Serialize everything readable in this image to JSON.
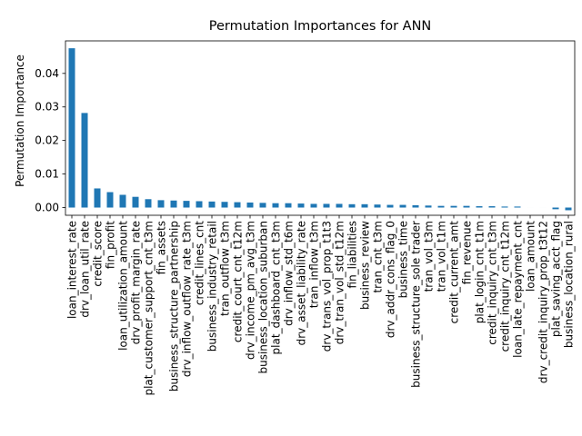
{
  "chart_data": {
    "type": "bar",
    "title": "Permutation Importances for ANN",
    "xlabel": "",
    "ylabel": "Permutation Importance",
    "ylim": [
      -0.0023,
      0.0497
    ],
    "yticks": [
      0.0,
      0.01,
      0.02,
      0.03,
      0.04
    ],
    "ytick_labels": [
      "0.00",
      "0.01",
      "0.02",
      "0.03",
      "0.04"
    ],
    "grid": false,
    "bar_color": "#1f77b4",
    "categories": [
      "loan_interest_rate",
      "drv_loan_util_rate",
      "credit_score",
      "fin_profit",
      "loan_utilization_amount",
      "drv_profit_margin_rate",
      "plat_customer_support_cnt_t3m",
      "fin_assets",
      "business_structure_partnership",
      "drv_inflow_outflow_rate_t3m",
      "credit_lines_cnt",
      "business_industry_retail",
      "tran_outflow_t3m",
      "credit_court_cnt_t12m",
      "drv_income_pm_avg_t3m",
      "business_location_suburban",
      "plat_dashboard_cnt_t3m",
      "drv_inflow_std_t6m",
      "drv_asset_liability_rate",
      "tran_inflow_t3m",
      "drv_trans_vol_prop_t1t3",
      "drv_tran_vol_std_t12m",
      "fin_liabilities",
      "business_review",
      "tran_cnt_t3m",
      "drv_addr_cons_flag_0",
      "business_time",
      "business_structure_sole trader",
      "tran_vol_t3m",
      "tran_vol_t1m",
      "credit_current_amt",
      "fin_revenue",
      "plat_login_cnt_t1m",
      "credit_inquiry_cnt_t3m",
      "credit_inquiry_cnt_t12m",
      "loan_late_repayment_cnt",
      "loan_amount",
      "drv_credit_inquiry_prop_t3t12",
      "plat_saving_acct_flag",
      "business_location_rural"
    ],
    "values": [
      0.0475,
      0.0282,
      0.0057,
      0.0046,
      0.0038,
      0.0032,
      0.0025,
      0.0022,
      0.0021,
      0.002,
      0.0019,
      0.0018,
      0.0017,
      0.0016,
      0.0015,
      0.0014,
      0.0013,
      0.0013,
      0.0012,
      0.0011,
      0.0011,
      0.0011,
      0.001,
      0.001,
      0.0009,
      0.0008,
      0.0008,
      0.0007,
      0.0006,
      0.0005,
      0.0005,
      0.0005,
      0.0004,
      0.0004,
      0.0003,
      0.0003,
      0.0,
      0.0,
      -0.0005,
      -0.0008
    ]
  }
}
